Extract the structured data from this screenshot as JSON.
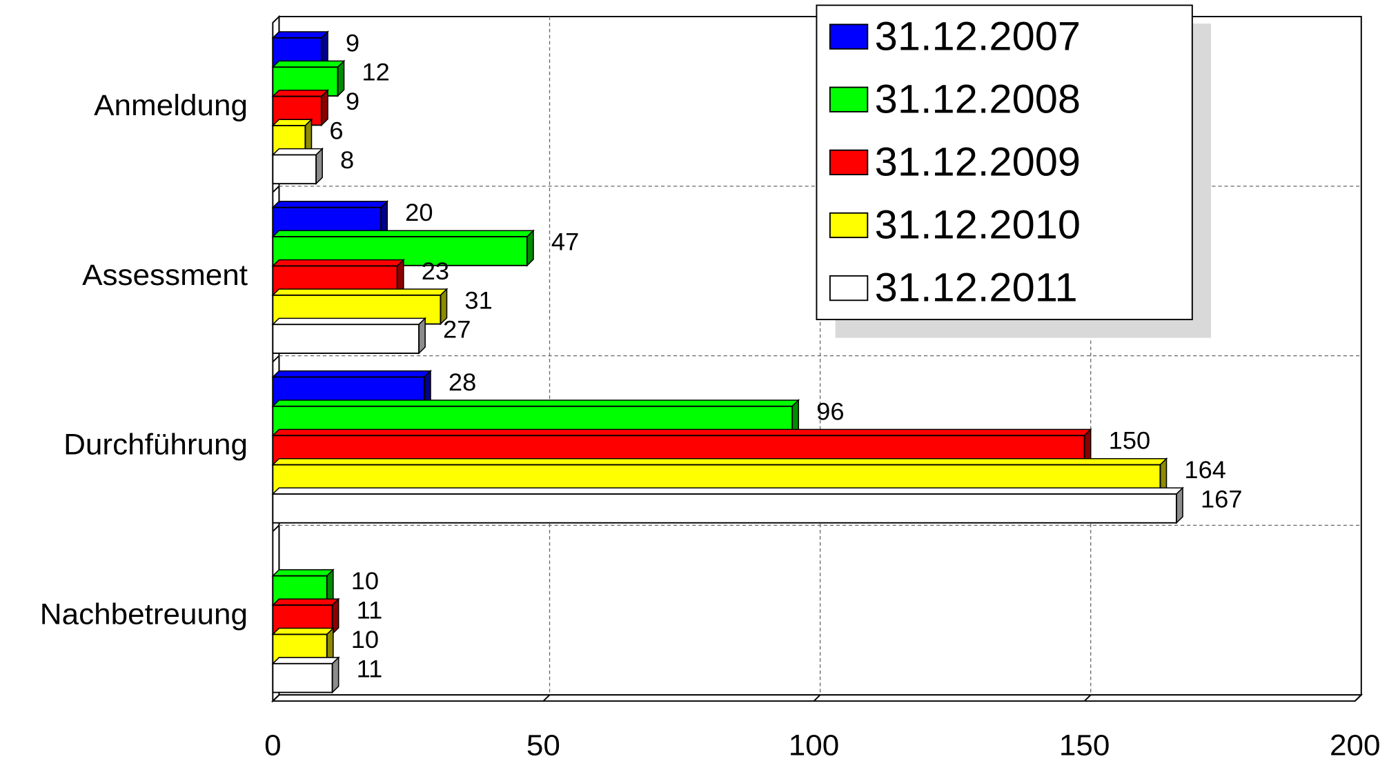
{
  "chart_data": {
    "type": "hbar3d",
    "categories": [
      "Anmeldung",
      "Assessment",
      "Durchführung",
      "Nachbetreuung"
    ],
    "series": [
      {
        "name": "31.12.2007",
        "color": "#0000ff",
        "values": [
          9,
          20,
          28,
          null
        ]
      },
      {
        "name": "31.12.2008",
        "color": "#00ff00",
        "values": [
          12,
          47,
          96,
          10
        ]
      },
      {
        "name": "31.12.2009",
        "color": "#ff0000",
        "values": [
          9,
          23,
          150,
          11
        ]
      },
      {
        "name": "31.12.2010",
        "color": "#ffff00",
        "values": [
          6,
          31,
          164,
          10
        ]
      },
      {
        "name": "31.12.2011",
        "color": "#ffffff",
        "values": [
          8,
          27,
          167,
          11
        ]
      }
    ],
    "xlim": [
      0,
      200
    ],
    "xticks": [
      0,
      50,
      100,
      150,
      200
    ],
    "grid": true,
    "legend": "top-right"
  }
}
